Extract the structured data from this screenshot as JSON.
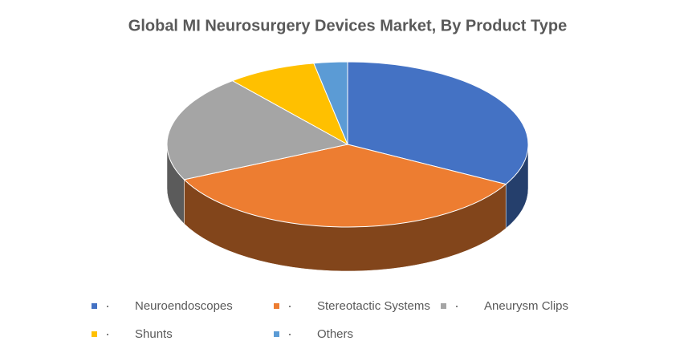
{
  "chart_data": {
    "type": "pie",
    "title": "Global MI Neurosurgery Devices Market, By Product Type",
    "categories": [
      "Neuroendoscopes",
      "Stereotactic Systems",
      "Aneurysm Clips",
      "Shunts",
      "Others"
    ],
    "values": [
      33,
      35,
      21,
      8,
      3
    ],
    "colors": [
      "#4472c4",
      "#ed7d31",
      "#a5a5a5",
      "#ffc000",
      "#5b9bd5"
    ],
    "legend": "bottom"
  }
}
